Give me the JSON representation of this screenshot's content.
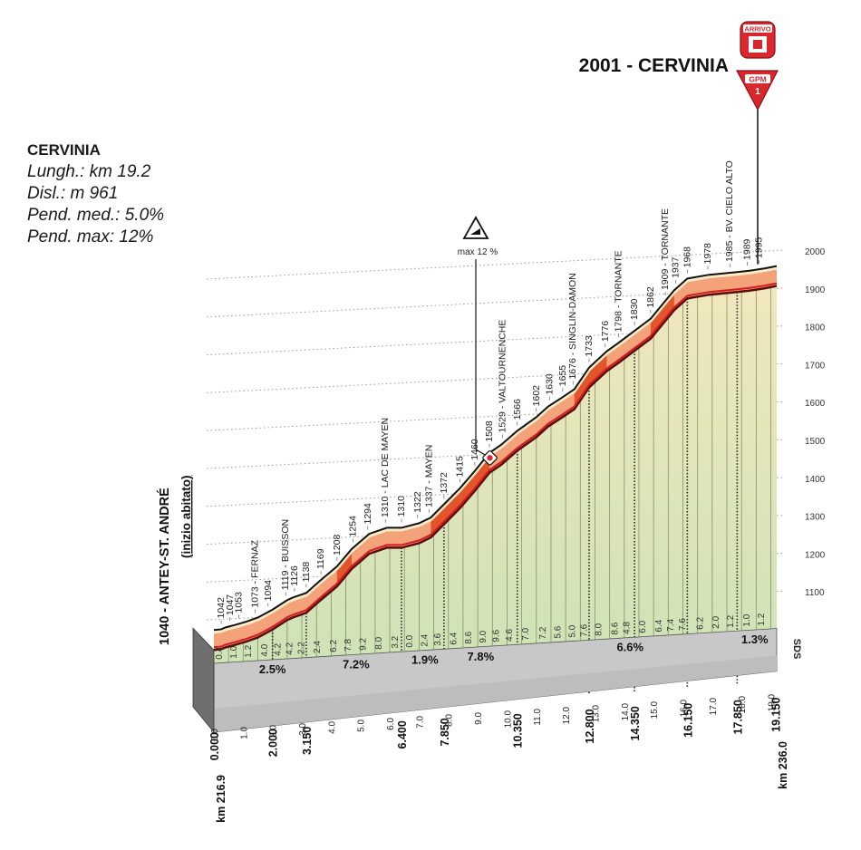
{
  "info_box": {
    "name": "CERVINIA",
    "lines": [
      "Lungh.: km 19.2",
      "Disl.: m 961",
      "Pend. med.: 5.0%",
      "Pend. max: 12%"
    ]
  },
  "finish": {
    "title": "2001 - CERVINIA",
    "arrivo_label": "ARRIVO",
    "gpm_label": "GPM",
    "gpm_category": "1"
  },
  "start": {
    "label": "1040 - ANTEY-ST. ANDRÉ",
    "sublabel": "(inizio abitato)"
  },
  "max_marker": {
    "label": "max 12 %",
    "km": 9.6
  },
  "credit": "SDS",
  "chart_data": {
    "type": "area",
    "title": "2001 - CERVINIA",
    "xlabel": "km",
    "ylabel": "m",
    "xlim": [
      0,
      19.2
    ],
    "ylim": [
      1000,
      2000
    ],
    "y_ticks": [
      1100,
      1200,
      1300,
      1400,
      1500,
      1600,
      1700,
      1800,
      1900,
      2000
    ],
    "x_ticks": [
      "0.0",
      "1.0",
      "2.0",
      "3.0",
      "4.0",
      "5.0",
      "6.0",
      "7.0",
      "8.0",
      "9.0",
      "10.0",
      "11.0",
      "12.0",
      "13.0",
      "14.0",
      "15.0",
      "16.0",
      "17.0",
      "18.0",
      "19.0"
    ],
    "km_from_start_labels": [
      {
        "km": 0,
        "text": "0.000"
      },
      {
        "km": 2.0,
        "text": "2.000"
      },
      {
        "km": 3.15,
        "text": "3.150"
      },
      {
        "km": 6.4,
        "text": "6.400"
      },
      {
        "km": 7.85,
        "text": "7.850"
      },
      {
        "km": 10.35,
        "text": "10.350"
      },
      {
        "km": 12.8,
        "text": "12.800"
      },
      {
        "km": 14.35,
        "text": "14.350"
      },
      {
        "km": 16.15,
        "text": "16.150"
      },
      {
        "km": 17.85,
        "text": "17.850"
      },
      {
        "km": 19.15,
        "text": "19.150"
      }
    ],
    "stage_km_start": "km 216.9",
    "stage_km_end": "km 236.0",
    "profile": [
      {
        "km": 0.0,
        "alt": 1040
      },
      {
        "km": 0.25,
        "alt": 1042
      },
      {
        "km": 0.4,
        "alt": 1047
      },
      {
        "km": 0.7,
        "alt": 1053
      },
      {
        "km": 1.1,
        "alt": 1062
      },
      {
        "km": 1.5,
        "alt": 1073
      },
      {
        "km": 2.0,
        "alt": 1094
      },
      {
        "km": 2.5,
        "alt": 1119
      },
      {
        "km": 2.7,
        "alt": 1126
      },
      {
        "km": 3.15,
        "alt": 1138
      },
      {
        "km": 3.6,
        "alt": 1169
      },
      {
        "km": 4.2,
        "alt": 1208
      },
      {
        "km": 4.7,
        "alt": 1254
      },
      {
        "km": 5.3,
        "alt": 1294
      },
      {
        "km": 5.9,
        "alt": 1310
      },
      {
        "km": 6.4,
        "alt": 1310
      },
      {
        "km": 7.0,
        "alt": 1322
      },
      {
        "km": 7.4,
        "alt": 1337
      },
      {
        "km": 7.85,
        "alt": 1372
      },
      {
        "km": 8.4,
        "alt": 1415
      },
      {
        "km": 8.9,
        "alt": 1460
      },
      {
        "km": 9.4,
        "alt": 1508
      },
      {
        "km": 9.8,
        "alt": 1529
      },
      {
        "km": 10.35,
        "alt": 1566
      },
      {
        "km": 11.0,
        "alt": 1602
      },
      {
        "km": 11.4,
        "alt": 1630
      },
      {
        "km": 11.9,
        "alt": 1655
      },
      {
        "km": 12.3,
        "alt": 1676
      },
      {
        "km": 12.8,
        "alt": 1733
      },
      {
        "km": 13.4,
        "alt": 1776
      },
      {
        "km": 13.8,
        "alt": 1798
      },
      {
        "km": 14.35,
        "alt": 1830
      },
      {
        "km": 14.9,
        "alt": 1862
      },
      {
        "km": 15.4,
        "alt": 1909
      },
      {
        "km": 15.7,
        "alt": 1937
      },
      {
        "km": 16.15,
        "alt": 1968
      },
      {
        "km": 16.9,
        "alt": 1978
      },
      {
        "km": 17.85,
        "alt": 1985
      },
      {
        "km": 18.3,
        "alt": 1989
      },
      {
        "km": 18.8,
        "alt": 1995
      },
      {
        "km": 19.2,
        "alt": 2001
      }
    ],
    "top_labels": [
      {
        "km": 0.25,
        "text": "1042"
      },
      {
        "km": 0.55,
        "text": "1047"
      },
      {
        "km": 0.85,
        "text": "1053"
      },
      {
        "km": 1.4,
        "text": "1073 - FERNAZ"
      },
      {
        "km": 1.85,
        "text": "1094"
      },
      {
        "km": 2.45,
        "text": "1119 - BUISSON"
      },
      {
        "km": 2.75,
        "text": "1126"
      },
      {
        "km": 3.15,
        "text": "1138"
      },
      {
        "km": 3.65,
        "text": "1169"
      },
      {
        "km": 4.2,
        "text": "1208"
      },
      {
        "km": 4.75,
        "text": "1254"
      },
      {
        "km": 5.25,
        "text": "1294"
      },
      {
        "km": 5.85,
        "text": "1310 - LAC DE MAYEN"
      },
      {
        "km": 6.4,
        "text": "1310"
      },
      {
        "km": 6.95,
        "text": "1322"
      },
      {
        "km": 7.35,
        "text": "1337 - MAYEN"
      },
      {
        "km": 7.85,
        "text": "1372"
      },
      {
        "km": 8.4,
        "text": "1415"
      },
      {
        "km": 8.9,
        "text": "1460"
      },
      {
        "km": 9.4,
        "text": "1508"
      },
      {
        "km": 9.85,
        "text": "1529 - VALTOURNENCHE"
      },
      {
        "km": 10.35,
        "text": "1566"
      },
      {
        "km": 11.0,
        "text": "1602"
      },
      {
        "km": 11.45,
        "text": "1630"
      },
      {
        "km": 11.9,
        "text": "1655"
      },
      {
        "km": 12.25,
        "text": "1676 - SINGLIN-DAMON"
      },
      {
        "km": 12.8,
        "text": "1733"
      },
      {
        "km": 13.35,
        "text": "1776"
      },
      {
        "km": 13.8,
        "text": "1798 - TORNANTE"
      },
      {
        "km": 14.35,
        "text": "1830"
      },
      {
        "km": 14.9,
        "text": "1862"
      },
      {
        "km": 15.4,
        "text": "1909 - TORNANTE"
      },
      {
        "km": 15.75,
        "text": "1937"
      },
      {
        "km": 16.15,
        "text": "1968"
      },
      {
        "km": 16.85,
        "text": "1978"
      },
      {
        "km": 17.6,
        "text": "1985 - BV. CIELO ALTO"
      },
      {
        "km": 18.2,
        "text": "1989"
      },
      {
        "km": 18.6,
        "text": "1995"
      }
    ],
    "segment_gradients": [
      {
        "km": 0.15,
        "text": "0.4"
      },
      {
        "km": 0.65,
        "text": "1.0"
      },
      {
        "km": 1.15,
        "text": "1.2"
      },
      {
        "km": 1.7,
        "text": "4.0"
      },
      {
        "km": 2.15,
        "text": "4.2"
      },
      {
        "km": 2.55,
        "text": "4.2"
      },
      {
        "km": 2.95,
        "text": "2.2"
      },
      {
        "km": 3.5,
        "text": "2.4"
      },
      {
        "km": 4.05,
        "text": "6.2"
      },
      {
        "km": 4.55,
        "text": "7.8"
      },
      {
        "km": 5.05,
        "text": "9.2"
      },
      {
        "km": 5.6,
        "text": "8.0"
      },
      {
        "km": 6.15,
        "text": "3.2"
      },
      {
        "km": 6.65,
        "text": "0.0"
      },
      {
        "km": 7.15,
        "text": "2.4"
      },
      {
        "km": 7.6,
        "text": "3.6"
      },
      {
        "km": 8.15,
        "text": "6.4"
      },
      {
        "km": 8.65,
        "text": "8.6"
      },
      {
        "km": 9.15,
        "text": "9.0"
      },
      {
        "km": 9.6,
        "text": "9.6"
      },
      {
        "km": 10.05,
        "text": "4.6"
      },
      {
        "km": 10.6,
        "text": "7.0"
      },
      {
        "km": 11.2,
        "text": "7.2"
      },
      {
        "km": 11.7,
        "text": "5.6"
      },
      {
        "km": 12.2,
        "text": "5.0"
      },
      {
        "km": 12.6,
        "text": "7.6"
      },
      {
        "km": 13.1,
        "text": "8.0"
      },
      {
        "km": 13.65,
        "text": "8.6"
      },
      {
        "km": 14.05,
        "text": "4.8"
      },
      {
        "km": 14.6,
        "text": "6.0"
      },
      {
        "km": 15.15,
        "text": "6.4"
      },
      {
        "km": 15.55,
        "text": "7.4"
      },
      {
        "km": 15.95,
        "text": "7.6"
      },
      {
        "km": 16.55,
        "text": "6.2"
      },
      {
        "km": 17.1,
        "text": "2.0"
      },
      {
        "km": 17.6,
        "text": "1.2"
      },
      {
        "km": 18.15,
        "text": "1.0"
      },
      {
        "km": 18.65,
        "text": "1.2"
      }
    ],
    "section_gradients": [
      {
        "km": 2.0,
        "text": "2.5%"
      },
      {
        "km": 4.85,
        "text": "7.2%"
      },
      {
        "km": 7.2,
        "text": "1.9%"
      },
      {
        "km": 9.1,
        "text": "7.8%"
      },
      {
        "km": 14.2,
        "text": "6.6%"
      },
      {
        "km": 18.45,
        "text": "1.3%"
      }
    ],
    "colors": {
      "sky_fill": "#ffffff",
      "area_top": "#efe6bc",
      "area_bottom": "#cfe4b8",
      "road_light": "#f4a27a",
      "road_dark": "#e2542a",
      "road_outline": "#5a0d0d",
      "front_grey": "#c8c8c8",
      "side_grey": "#6f6f6f",
      "marker_red": "#d8272d"
    }
  }
}
